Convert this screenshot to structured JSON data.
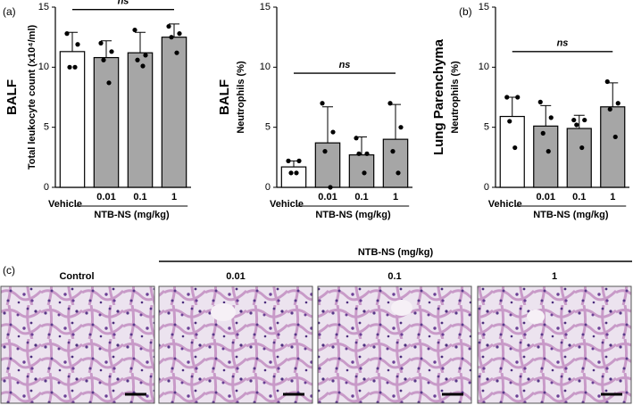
{
  "chart_data": [
    {
      "type": "bar",
      "side_label": "BALF",
      "y_label": "Total leukocyte count (x10⁴/ml)",
      "categories": [
        "Vehicle",
        "0.01",
        "0.1",
        "1"
      ],
      "group_label": "NTB-NS (mg/kg)",
      "values": [
        11.3,
        10.8,
        11.2,
        12.5
      ],
      "errors": [
        1.6,
        1.4,
        1.7,
        1.1
      ],
      "points": [
        [
          12.8,
          11.9,
          10.0,
          10.0
        ],
        [
          12.0,
          11.3,
          10.6,
          8.7
        ],
        [
          13.1,
          11.0,
          10.6,
          10.1
        ],
        [
          13.4,
          12.8,
          12.5,
          11.2
        ]
      ],
      "colors": [
        "#ffffff",
        "#a6a6a6",
        "#a6a6a6",
        "#a6a6a6"
      ],
      "annotation": "ns",
      "ylim": [
        0,
        15
      ],
      "yticks": [
        0,
        5,
        10,
        15
      ]
    },
    {
      "type": "bar",
      "side_label": "BALF",
      "y_label": "Neutrophils (%)",
      "categories": [
        "Vehicle",
        "0.01",
        "0.1",
        "1"
      ],
      "group_label": "NTB-NS (mg/kg)",
      "values": [
        1.7,
        3.7,
        2.7,
        4.0
      ],
      "errors": [
        0.5,
        3.0,
        1.5,
        2.9
      ],
      "points": [
        [
          2.2,
          2.2,
          1.2,
          1.2
        ],
        [
          7.0,
          4.6,
          3.0,
          0
        ],
        [
          4.1,
          2.8,
          2.8,
          1.2
        ],
        [
          7.0,
          5.0,
          3.0,
          1.2
        ]
      ],
      "colors": [
        "#ffffff",
        "#a6a6a6",
        "#a6a6a6",
        "#a6a6a6"
      ],
      "annotation": "ns",
      "ylim": [
        0,
        15
      ],
      "yticks": [
        0,
        5,
        10,
        15
      ]
    },
    {
      "type": "bar",
      "side_label": "Lung Parenchyma",
      "y_label": "Neutrophils (%)",
      "categories": [
        "Vehicle",
        "0.01",
        "0.1",
        "1"
      ],
      "group_label": "NTB-NS (mg/kg)",
      "values": [
        5.9,
        5.1,
        4.9,
        6.7
      ],
      "errors": [
        1.6,
        1.7,
        1.1,
        2.0
      ],
      "points": [
        [
          7.5,
          7.5,
          5.5,
          3.3
        ],
        [
          7.1,
          5.8,
          4.5,
          3.0
        ],
        [
          5.6,
          5.6,
          5.2,
          3.3
        ],
        [
          8.8,
          7.0,
          6.5,
          4.2
        ]
      ],
      "colors": [
        "#ffffff",
        "#a6a6a6",
        "#a6a6a6",
        "#a6a6a6"
      ],
      "annotation": "ns",
      "ylim": [
        0,
        15
      ],
      "yticks": [
        0,
        5,
        10,
        15
      ]
    }
  ],
  "panels": {
    "a": "(a)",
    "b": "(b)",
    "c": "(c)"
  },
  "histology": {
    "group_label": "NTB-NS (mg/kg)",
    "labels": [
      "Control",
      "0.01",
      "0.1",
      "1"
    ]
  }
}
